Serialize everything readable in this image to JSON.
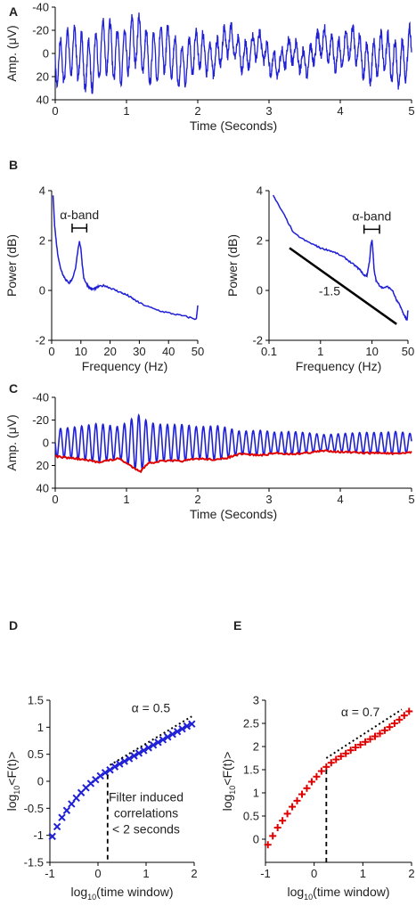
{
  "panels": {
    "A": {
      "letter": "A"
    },
    "B": {
      "letter": "B"
    },
    "C": {
      "letter": "C"
    },
    "D": {
      "letter": "D",
      "alpha_label": "α = 0.5",
      "note": [
        "Filter induced",
        "correlations",
        "< 2 seconds"
      ]
    },
    "E": {
      "letter": "E",
      "alpha_label": "α = 0.7"
    },
    "B_left": {
      "band_label": "α-band"
    },
    "B_right": {
      "band_label": "α-band",
      "slope_label": "-1.5"
    }
  },
  "chart_data": [
    {
      "id": "A",
      "type": "line",
      "xlabel": "Time (Seconds)",
      "ylabel": "Amp. (μV)",
      "xlim": [
        0,
        5
      ],
      "ylim": [
        -40,
        40
      ],
      "y_inverted": true,
      "xticks": [
        0,
        1,
        2,
        3,
        4,
        5
      ],
      "yticks": [
        -40,
        -20,
        0,
        20,
        40
      ],
      "series": [
        {
          "color": "#1f1fd6",
          "amplitude": [
            -25,
            25
          ],
          "dominant_freq_hz": 10
        }
      ]
    },
    {
      "id": "B_left",
      "type": "line",
      "xlabel": "Frequency (Hz)",
      "ylabel": "Power (dB)",
      "xlim": [
        0,
        50
      ],
      "ylim": [
        -2,
        4
      ],
      "xticks": [
        0,
        10,
        20,
        30,
        40,
        50
      ],
      "yticks": [
        -2,
        0,
        2,
        4
      ],
      "series": [
        {
          "color": "#1f1fd6",
          "x": [
            0.5,
            1,
            2,
            3,
            4,
            5,
            6,
            7,
            8,
            9,
            9.5,
            10,
            10.5,
            11,
            12,
            13,
            14,
            15,
            16,
            18,
            20,
            22,
            24,
            26,
            28,
            30,
            34,
            38,
            42,
            46,
            49.5,
            50
          ],
          "y": [
            3.8,
            2.6,
            1.5,
            0.9,
            0.6,
            0.4,
            0.3,
            0.45,
            0.8,
            1.6,
            1.95,
            1.7,
            1.0,
            0.5,
            0.25,
            0.1,
            0.05,
            0.08,
            0.15,
            0.2,
            0.1,
            0.0,
            -0.1,
            -0.2,
            -0.35,
            -0.5,
            -0.7,
            -0.85,
            -0.95,
            -1.05,
            -1.15,
            -0.6
          ]
        }
      ],
      "band_range_hz": [
        7,
        12
      ]
    },
    {
      "id": "B_right",
      "type": "line",
      "x_scale": "log",
      "xlabel": "Frequency (Hz)",
      "ylabel": "Power (dB)",
      "xlim": [
        0.1,
        50
      ],
      "ylim": [
        -2,
        4
      ],
      "xticks": [
        0.1,
        1,
        10,
        50
      ],
      "yticks": [
        -2,
        0,
        2,
        4
      ],
      "series": [
        {
          "color": "#1f1fd6",
          "x": [
            0.12,
            0.2,
            0.3,
            0.5,
            0.8,
            1,
            1.5,
            2,
            3,
            4,
            5,
            6,
            7,
            8,
            9,
            9.5,
            10,
            10.5,
            11,
            12,
            14,
            16,
            20,
            25,
            30,
            35,
            40,
            45,
            48,
            50
          ],
          "y": [
            3.8,
            3.0,
            2.3,
            2.0,
            1.8,
            1.7,
            1.6,
            1.5,
            1.3,
            1.1,
            0.95,
            0.8,
            0.6,
            0.6,
            1.2,
            1.8,
            2.0,
            1.5,
            0.8,
            0.4,
            0.2,
            0.1,
            0.15,
            0.0,
            -0.4,
            -0.6,
            -0.9,
            -1.1,
            -1.2,
            -0.8
          ]
        },
        {
          "color": "#000000",
          "x": [
            0.25,
            30
          ],
          "y": [
            1.7,
            -1.35
          ]
        }
      ],
      "band_range_hz": [
        7,
        14
      ]
    },
    {
      "id": "C",
      "type": "line",
      "xlabel": "Time (Seconds)",
      "ylabel": "Amp. (μV)",
      "xlim": [
        0,
        5
      ],
      "ylim": [
        -40,
        40
      ],
      "y_inverted": true,
      "xticks": [
        0,
        1,
        2,
        3,
        4,
        5
      ],
      "yticks": [
        -40,
        -20,
        0,
        20,
        40
      ],
      "series": [
        {
          "color": "#1f1fd6",
          "dominant_freq_hz": 10
        },
        {
          "color": "#e00000",
          "x": [
            0,
            0.3,
            0.6,
            0.9,
            1.1,
            1.2,
            1.3,
            1.5,
            1.8,
            2.0,
            2.3,
            2.6,
            2.9,
            3.1,
            3.3,
            3.5,
            3.8,
            4.0,
            4.3,
            4.6,
            4.8,
            5.0
          ],
          "y": [
            12,
            14,
            17,
            14,
            22,
            25,
            18,
            16,
            16,
            14,
            15,
            10,
            11,
            9,
            10,
            9,
            7,
            8,
            9,
            9,
            10,
            8
          ]
        }
      ]
    },
    {
      "id": "D",
      "type": "scatter",
      "xlabel": "log₁₀(time window)",
      "ylabel": "log₁₀<F(t)>",
      "xlim": [
        -1,
        2
      ],
      "ylim": [
        -1.5,
        1.5
      ],
      "xticks": [
        -1,
        0,
        1,
        2
      ],
      "yticks": [
        -1.5,
        -1,
        -0.5,
        0,
        0.5,
        1,
        1.5
      ],
      "series": [
        {
          "marker": "x",
          "color": "#1f1fd6",
          "x": [
            -0.95,
            -0.85,
            -0.75,
            -0.65,
            -0.55,
            -0.45,
            -0.35,
            -0.25,
            -0.15,
            -0.05,
            0.05,
            0.15,
            0.25,
            0.35,
            0.45,
            0.55,
            0.65,
            0.75,
            0.85,
            0.95,
            1.05,
            1.15,
            1.25,
            1.35,
            1.45,
            1.55,
            1.65,
            1.75,
            1.85,
            1.95
          ],
          "y": [
            -1.02,
            -0.84,
            -0.67,
            -0.54,
            -0.42,
            -0.31,
            -0.21,
            -0.12,
            -0.04,
            0.03,
            0.1,
            0.16,
            0.21,
            0.27,
            0.32,
            0.37,
            0.42,
            0.47,
            0.52,
            0.57,
            0.62,
            0.67,
            0.72,
            0.77,
            0.82,
            0.87,
            0.92,
            0.97,
            1.02,
            1.06
          ]
        }
      ],
      "guides": {
        "dashed_x": 0.2,
        "dotted_line": {
          "x": [
            0.25,
            1.95
          ],
          "y": [
            0.3,
            1.2
          ]
        }
      }
    },
    {
      "id": "E",
      "type": "scatter",
      "xlabel": "log₁₀(time window)",
      "ylabel": "log₁₀<F(t)>",
      "xlim": [
        -1,
        2
      ],
      "ylim": [
        -0.5,
        3
      ],
      "xticks": [
        -1,
        0,
        1,
        2
      ],
      "yticks": [
        0,
        0.5,
        1,
        1.5,
        2,
        2.5,
        3
      ],
      "series": [
        {
          "marker": "+",
          "color": "#e00000",
          "x": [
            -0.95,
            -0.85,
            -0.75,
            -0.65,
            -0.55,
            -0.45,
            -0.35,
            -0.25,
            -0.15,
            -0.05,
            0.05,
            0.15,
            0.25,
            0.35,
            0.45,
            0.55,
            0.65,
            0.75,
            0.85,
            0.95,
            1.05,
            1.15,
            1.25,
            1.35,
            1.45,
            1.55,
            1.65,
            1.75,
            1.85,
            1.95
          ],
          "y": [
            -0.12,
            0.07,
            0.25,
            0.4,
            0.55,
            0.7,
            0.83,
            0.97,
            1.1,
            1.24,
            1.35,
            1.47,
            1.56,
            1.65,
            1.72,
            1.79,
            1.85,
            1.92,
            1.98,
            2.04,
            2.1,
            2.16,
            2.22,
            2.28,
            2.35,
            2.42,
            2.5,
            2.58,
            2.67,
            2.76
          ]
        }
      ],
      "guides": {
        "dashed_x": 0.25,
        "dotted_line": {
          "x": [
            0.25,
            1.8
          ],
          "y": [
            1.75,
            2.8
          ]
        }
      }
    }
  ]
}
